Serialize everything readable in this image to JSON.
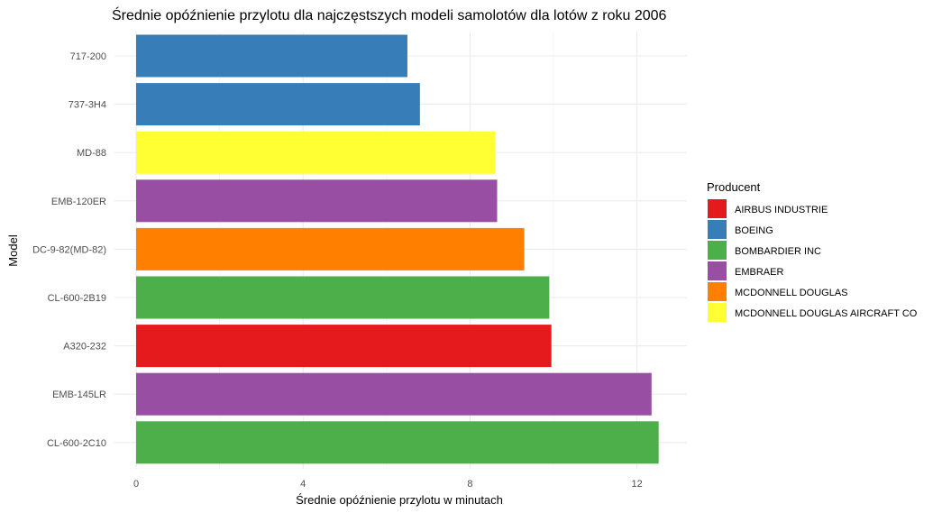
{
  "chart_data": {
    "type": "bar",
    "orientation": "horizontal",
    "title": "Średnie opóźnienie przylotu dla najczęstszych modeli samolotów dla lotów z roku 2006",
    "xlabel": "Średnie opóźnienie przylotu w minutach",
    "ylabel": "Model",
    "xlim": [
      0,
      13.3
    ],
    "x_ticks": [
      0,
      4,
      8,
      12
    ],
    "grid": true,
    "legend_position": "right",
    "legend_title": "Producent",
    "legend": [
      {
        "name": "AIRBUS INDUSTRIE",
        "color": "#e41a1c"
      },
      {
        "name": "BOEING",
        "color": "#377eb8"
      },
      {
        "name": "BOMBARDIER INC",
        "color": "#4daf4a"
      },
      {
        "name": "EMBRAER",
        "color": "#984ea3"
      },
      {
        "name": "MCDONNELL DOUGLAS",
        "color": "#ff7f00"
      },
      {
        "name": "MCDONNELL DOUGLAS AIRCRAFT CO",
        "color": "#ffff33"
      }
    ],
    "categories": [
      "717-200",
      "737-3H4",
      "MD-88",
      "EMB-120ER",
      "DC-9-82(MD-82)",
      "CL-600-2B19",
      "A320-232",
      "EMB-145LR",
      "CL-600-2C10"
    ],
    "values": [
      6.5,
      6.8,
      8.6,
      8.65,
      9.3,
      9.9,
      9.95,
      12.35,
      12.52
    ],
    "manufacturers": [
      "BOEING",
      "BOEING",
      "MCDONNELL DOUGLAS AIRCRAFT CO",
      "EMBRAER",
      "MCDONNELL DOUGLAS",
      "BOMBARDIER INC",
      "AIRBUS INDUSTRIE",
      "EMBRAER",
      "BOMBARDIER INC"
    ]
  }
}
